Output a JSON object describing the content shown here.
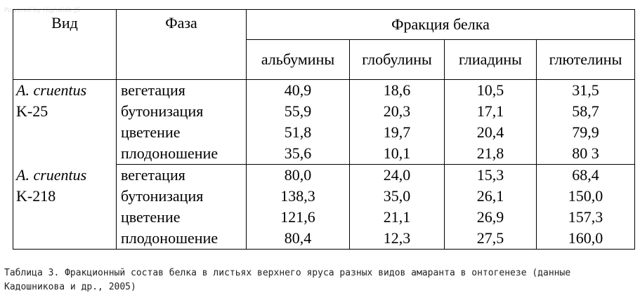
{
  "watermark": "Powered by Highslide JS",
  "table": {
    "header": {
      "species": "Вид",
      "phase": "Фаза",
      "fraction": "Фракция белка",
      "fractions": [
        "альбумины",
        "глобулины",
        "глиадины",
        "глютелины"
      ]
    },
    "groups": [
      {
        "species": "A. cruentus",
        "sample": "K-25",
        "rows": [
          {
            "phase": "вегетация",
            "values": [
              "40,9",
              "18,6",
              "10,5",
              "31,5"
            ]
          },
          {
            "phase": "бутонизация",
            "values": [
              "55,9",
              "20,3",
              "17,1",
              "58,7"
            ]
          },
          {
            "phase": "цветение",
            "values": [
              "51,8",
              "19,7",
              "20,4",
              "79,9"
            ]
          },
          {
            "phase": "плодоношение",
            "values": [
              "35,6",
              "10,1",
              "21,8",
              "80 3"
            ]
          }
        ]
      },
      {
        "species": "A. cruentus",
        "sample": "K-218",
        "rows": [
          {
            "phase": "вегетация",
            "values": [
              "80,0",
              "24,0",
              "15,3",
              "68,4"
            ]
          },
          {
            "phase": "бутонизация",
            "values": [
              "138,3",
              "35,0",
              "26,1",
              "150,0"
            ]
          },
          {
            "phase": "цветение",
            "values": [
              "121,6",
              "21,1",
              "26,9",
              "157,3"
            ]
          },
          {
            "phase": "плодоношение",
            "values": [
              "80,4",
              "12,3",
              "27,5",
              "160,0"
            ]
          }
        ]
      }
    ]
  },
  "caption": "Таблица 3. Фракционный состав белка в листьях верхнего яруса разных видов амаранта в онтогенезе (данные Кадошникова и др., 2005)"
}
